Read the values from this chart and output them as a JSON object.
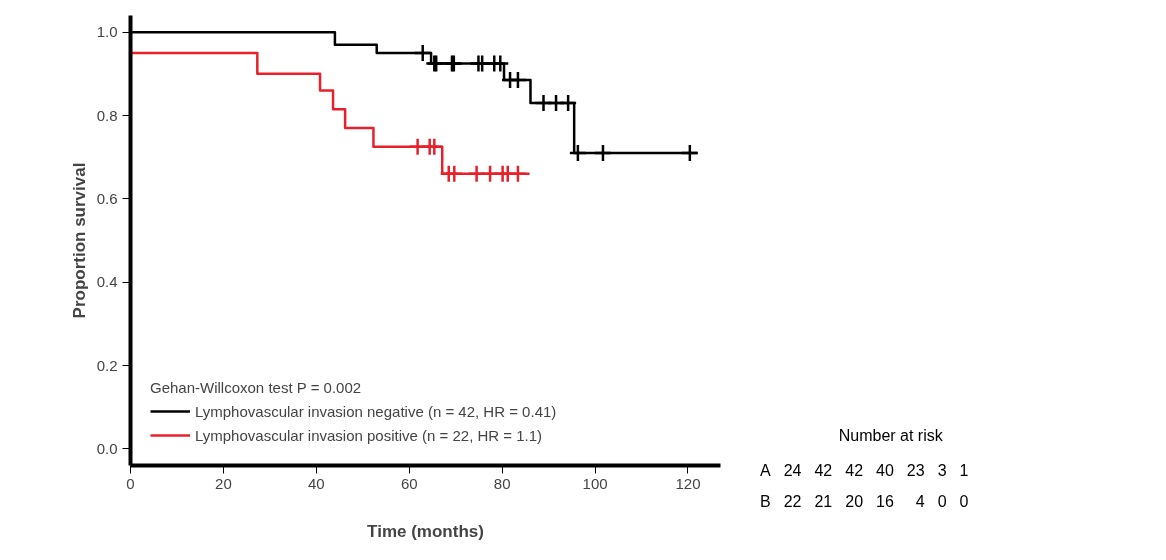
{
  "chart_data": {
    "type": "step",
    "xlabel": "Time (months)",
    "ylabel": "Proportion survival",
    "legend_title": "Gehan-Willcoxon test P = 0.002",
    "xlim": [
      0,
      127
    ],
    "ylim": [
      -0.04,
      1.04
    ],
    "xticks": [
      0,
      20,
      40,
      60,
      80,
      100,
      120
    ],
    "yticks": [
      {
        "value": 0,
        "label": "0.0"
      },
      0.2,
      0.4,
      0.6,
      0.8,
      {
        "value": 1,
        "label": "1.0"
      }
    ],
    "grid": false,
    "legend": "bottom left",
    "series": [
      {
        "name": "Lymphovascular invasion negative (n = 42, HR = 0.41)",
        "color": "#000000",
        "x": [
          0,
          44,
          53,
          64.7,
          80.4,
          86.1,
          95.5,
          122
        ],
        "values": [
          1.0,
          0.97,
          0.95,
          0.925,
          0.885,
          0.83,
          0.71,
          0.71
        ]
      },
      {
        "name": "Lymphovascular invasion positive (n = 22, HR = 1.1)",
        "color": "#e8202a",
        "x": [
          0,
          27.3,
          40.8,
          43.6,
          46.2,
          52.3,
          67.1,
          85.9
        ],
        "values": [
          0.95,
          0.9,
          0.86,
          0.815,
          0.77,
          0.725,
          0.66,
          0.66
        ]
      },
      {
        "color": "#000000",
        "type": "scatter",
        "marker": "cross",
        "x": [
          62.9,
          65.4,
          65.8,
          69.2,
          69.6,
          74.9,
          75.7,
          78.3,
          79.6,
          81.7,
          83.4,
          88.9,
          91.6,
          94.2,
          96.3,
          101.7,
          120.4
        ],
        "values": [
          0.95,
          0.925,
          0.925,
          0.925,
          0.925,
          0.925,
          0.925,
          0.925,
          0.925,
          0.885,
          0.885,
          0.83,
          0.83,
          0.83,
          0.71,
          0.71,
          0.71
        ]
      },
      {
        "color": "#e8202a",
        "type": "scatter",
        "marker": "cross",
        "x": [
          61.8,
          64.4,
          65.4,
          68.5,
          69.7,
          74.5,
          77.4,
          80.1,
          81.2,
          83.4
        ],
        "values": [
          0.725,
          0.725,
          0.725,
          0.66,
          0.66,
          0.66,
          0.66,
          0.66,
          0.66,
          0.66
        ]
      }
    ],
    "annotations": [
      "Number at risk",
      "A 24 42 42 40 23 3 1",
      "B 22 21 20 16 4 0 0"
    ]
  }
}
